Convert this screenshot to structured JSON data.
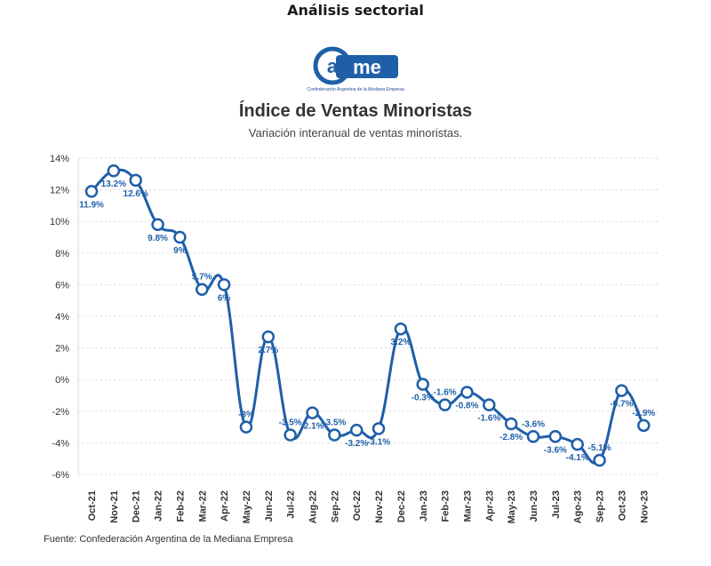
{
  "header": {
    "section": "Análisis sectorial"
  },
  "logo": {
    "tagline": "Confederación Argentina de la Mediana Empresa"
  },
  "colors": {
    "line": "#1f5fa8",
    "brand": "#1f5fa8",
    "grid": "#d9d9d9"
  },
  "footer": {
    "source": "Fuente: Confederación Argentina de la Mediana Empresa"
  },
  "chart_data": {
    "type": "line",
    "title": "Índice de Ventas Minoristas",
    "subtitle": "Variación interanual de ventas minoristas.",
    "xlabel": "",
    "ylabel": "",
    "ylim": [
      -6,
      14
    ],
    "yticks": [
      "14%",
      "12%",
      "10%",
      "8%",
      "6%",
      "4%",
      "2%",
      "0%",
      "-2%",
      "-4%",
      "-6%"
    ],
    "grid": true,
    "categories": [
      "Oct-21",
      "Nov-21",
      "Dec-21",
      "Jan-22",
      "Feb-22",
      "Mar-22",
      "Apr-22",
      "May-22",
      "Jun-22",
      "Jul-22",
      "Aug-22",
      "Sep-22",
      "Oct-22",
      "Nov-22",
      "Dec-22",
      "Jan-23",
      "Feb-23",
      "Mar-23",
      "Apr-23",
      "May-23",
      "Jun-23",
      "Jul-23",
      "Ago-23",
      "Sep-23",
      "Oct-23",
      "Nov-23"
    ],
    "values": [
      11.9,
      13.2,
      12.6,
      9.8,
      9.0,
      5.7,
      6.0,
      -3.0,
      2.7,
      -3.5,
      -2.1,
      -3.5,
      -3.2,
      -3.1,
      3.2,
      -0.3,
      -1.6,
      -0.8,
      -1.6,
      -2.8,
      -3.6,
      -3.6,
      -4.1,
      -5.1,
      -0.7,
      -2.9
    ],
    "labels": [
      "11.9%",
      "13.2%",
      "12.6%",
      "9.8%",
      "9%",
      "5.7%",
      "6%",
      "-3%",
      "2.7%",
      "-3.5%",
      "-2.1%",
      "-3.5%",
      "-3.2%",
      "-3.1%",
      "3.2%",
      "-0.3%",
      "-1.6%",
      "-0.8%",
      "-1.6%",
      "-2.8%",
      "-3.6%",
      "-3.6%",
      "-4.1%",
      "-5.1%",
      "-0.7%",
      "-2.9%"
    ]
  }
}
